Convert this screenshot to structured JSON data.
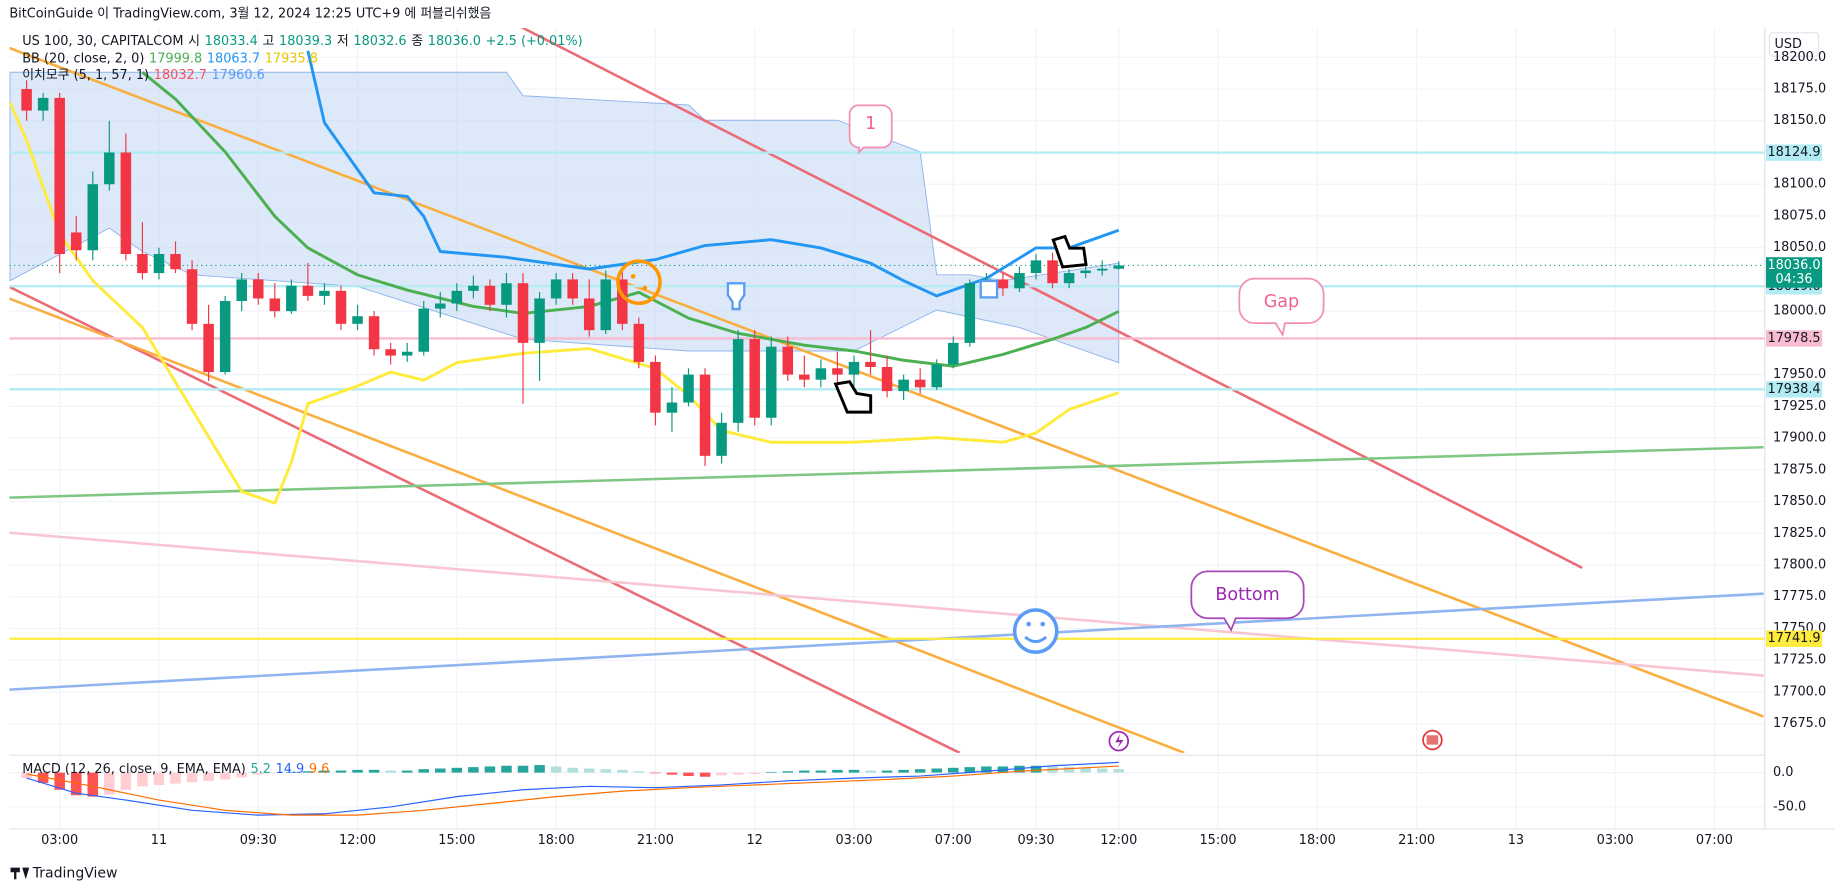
{
  "header": {
    "publish_note": "BitCoinGuide 이 TradingView.com, 3월 12, 2024 12:25 UTC+9 에 퍼블리쉬했음",
    "currency": "USD",
    "footer_logo": "TradingView"
  },
  "chart_data": {
    "type": "candlestick",
    "symbol": "US 100, 30, CAPITALCOM",
    "ohlc_legend": {
      "open_label": "시",
      "open": 18033.4,
      "high_label": "고",
      "high": 18039.3,
      "low_label": "저",
      "low": 18032.6,
      "close_label": "종",
      "close": {
        "value": 18036,
        "label": "18036.0"
      },
      "change": "+2.5 (+0.01%)"
    },
    "categories": [
      null,
      null,
      "03:00",
      null,
      null,
      null,
      null,
      null,
      "11",
      null,
      null,
      null,
      null,
      null,
      "09:30",
      null,
      null,
      null,
      null,
      null,
      "12:00",
      null,
      null,
      null,
      null,
      null,
      "15:00",
      null,
      null,
      null,
      null,
      null,
      "18:00",
      null,
      null,
      null,
      null,
      null,
      "21:00",
      null,
      null,
      null,
      null,
      null,
      "12",
      null,
      null,
      null,
      null,
      null,
      "03:00",
      null,
      null,
      null,
      null,
      null,
      "07:00",
      null,
      null,
      null,
      null,
      "09:30",
      null,
      null,
      null,
      null,
      "12:00"
    ],
    "open": [
      18175,
      18158,
      18168,
      18062,
      18048,
      18100,
      18125,
      18045,
      18030,
      18045,
      18033,
      17990,
      17952,
      18008,
      18025,
      18010,
      18000,
      18020,
      18012,
      18016,
      17990,
      17996,
      17970,
      17965,
      17968,
      18002,
      18006,
      18016,
      18020,
      18005,
      18022,
      17975,
      18010,
      18025,
      18010,
      17985,
      18025,
      17990,
      17960,
      17920,
      17928,
      17950,
      17886,
      17912,
      17978,
      17916,
      17972,
      17950,
      17946,
      17955,
      17950,
      17960,
      17956,
      17937,
      17946,
      17940,
      17958,
      17975,
      18022,
      18025,
      18018,
      18030,
      18040,
      18022,
      18030,
      18032,
      18033.4
    ],
    "high": [
      18182,
      18172,
      18172,
      18075,
      18110,
      18150,
      18140,
      18070,
      18050,
      18055,
      18040,
      18005,
      18012,
      18030,
      18030,
      18022,
      18025,
      18038,
      18022,
      18020,
      18005,
      18000,
      17975,
      17975,
      18008,
      18015,
      18022,
      18028,
      18025,
      18030,
      18030,
      18015,
      18030,
      18030,
      18025,
      18032,
      18035,
      17995,
      17965,
      17940,
      17955,
      17955,
      17920,
      17985,
      17985,
      17980,
      17980,
      17965,
      17962,
      17968,
      17965,
      17985,
      17965,
      17950,
      17955,
      17962,
      17980,
      18025,
      18030,
      18030,
      18035,
      18045,
      18046,
      18033,
      18036,
      18040,
      18039.3
    ],
    "low": [
      18150,
      18150,
      18030,
      18040,
      18040,
      18095,
      18040,
      18025,
      18025,
      18030,
      17985,
      17945,
      17950,
      18000,
      18005,
      17995,
      17998,
      18008,
      18005,
      17985,
      17985,
      17965,
      17958,
      17960,
      17965,
      17995,
      18000,
      18010,
      18000,
      17995,
      17927,
      17945,
      18005,
      18005,
      17980,
      17982,
      17985,
      17955,
      17910,
      17905,
      17925,
      17878,
      17880,
      17905,
      17910,
      17910,
      17945,
      17940,
      17940,
      17940,
      17932,
      17950,
      17932,
      17930,
      17935,
      17938,
      17955,
      17972,
      18015,
      18012,
      18015,
      18025,
      18018,
      18018,
      18026,
      18028,
      18032.6
    ],
    "close": [
      18158,
      18168,
      18045,
      18048,
      18100,
      18125,
      18045,
      18030,
      18045,
      18033,
      17990,
      17952,
      18008,
      18025,
      18010,
      18000,
      18020,
      18012,
      18016,
      17990,
      17996,
      17970,
      17965,
      17968,
      18002,
      18006,
      18016,
      18020,
      18005,
      18022,
      17975,
      18010,
      18025,
      18010,
      17985,
      18025,
      17990,
      17960,
      17920,
      17928,
      17950,
      17886,
      17912,
      17978,
      17916,
      17972,
      17950,
      17946,
      17955,
      17950,
      17960,
      17956,
      17937,
      17946,
      17940,
      17958,
      17975,
      18022,
      18025,
      18018,
      18030,
      18040,
      18022,
      18030,
      18032,
      18033.4,
      18036
    ],
    "up_color": "#089981",
    "down_color": "#f23645",
    "ylim": [
      17652,
      18223
    ],
    "yticks": [
      {
        "value": 17675,
        "label": "17675.0"
      },
      {
        "value": 17700,
        "label": "17700.0"
      },
      {
        "value": 17725,
        "label": "17725.0"
      },
      {
        "value": 17750,
        "label": "17750.0"
      },
      {
        "value": 17775,
        "label": "17775.0"
      },
      {
        "value": 17800,
        "label": "17800.0"
      },
      {
        "value": 17825,
        "label": "17825.0"
      },
      {
        "value": 17850,
        "label": "17850.0"
      },
      {
        "value": 17875,
        "label": "17875.0"
      },
      {
        "value": 17900,
        "label": "17900.0"
      },
      {
        "value": 17925,
        "label": "17925.0"
      },
      {
        "value": 17950,
        "label": "17950.0"
      },
      {
        "value": 18000,
        "label": "18000.0"
      },
      {
        "value": 18050,
        "label": "18050.0"
      },
      {
        "value": 18075,
        "label": "18075.0"
      },
      {
        "value": 18100,
        "label": "18100.0"
      },
      {
        "value": 18150,
        "label": "18150.0"
      },
      {
        "value": 18175,
        "label": "18175.0"
      },
      {
        "value": 18200,
        "label": "18200.0"
      }
    ],
    "grid": true,
    "future_time_labels": [
      "15:00",
      "18:00",
      "21:00",
      "13",
      "03:00",
      "07:00"
    ],
    "last_price": {
      "value": 18036,
      "label": "18036.0"
    },
    "countdown": "04:36",
    "price_lines": [
      {
        "value": 18124.9,
        "color": "#b2ebf2"
      },
      {
        "value": 18019.6,
        "color": "#b2ebf2"
      },
      {
        "value": 17978.5,
        "color": "#f8bbd0"
      },
      {
        "value": 17938.4,
        "color": "#b2ebf2"
      },
      {
        "value": 17741.9,
        "color": "#ffeb3b"
      }
    ],
    "bollinger": {
      "label": "BB (20, close, 2, 0)",
      "legend_values": [
        17999.8,
        18063.7,
        17935.8
      ],
      "lines": [
        {
          "color": "#4caf50",
          "x": [
            7,
            9,
            12,
            15,
            17,
            20,
            23,
            27,
            30,
            34,
            37,
            40,
            43,
            47,
            50,
            53,
            56,
            59,
            62,
            64,
            66
          ],
          "values": [
            18188.2,
            18167,
            18125.5,
            18074.7,
            18049.8,
            18028.6,
            18016.6,
            18003.7,
            17998.2,
            18003.7,
            18014.8,
            17994.5,
            17982.5,
            17973.2,
            17968.6,
            17961.3,
            17956.6,
            17965.9,
            17977.9,
            17987.1,
            17999.8
          ]
        },
        {
          "color": "#2196f3",
          "x": [
            17,
            18,
            20,
            21,
            23,
            24,
            25,
            29,
            34,
            38,
            41,
            45,
            48,
            51,
            53,
            55,
            58,
            61,
            63,
            66
          ],
          "values": [
            18205,
            18148.5,
            18111.6,
            18093.2,
            18090.4,
            18074.7,
            18047,
            18042.4,
            18033.2,
            18040.6,
            18051.7,
            18056.3,
            18049.8,
            18037.8,
            18024,
            18012,
            18025.8,
            18049.8,
            18049.8,
            18063.7
          ]
        },
        {
          "color": "#ffeb3b",
          "x": [
            -1,
            0,
            2,
            4,
            7,
            10,
            13,
            15,
            16,
            17,
            20,
            22,
            24,
            26,
            30,
            34,
            38,
            40,
            42,
            45,
            50,
            55,
            59,
            61,
            63,
            66
          ],
          "values": [
            18164.2,
            18134.7,
            18060.9,
            18024,
            17987.1,
            17922.5,
            17857.9,
            17848.7,
            17881,
            17927.1,
            17941,
            17952,
            17945.6,
            17959.4,
            17966.8,
            17970.5,
            17954.8,
            17933.6,
            17905.9,
            17896.7,
            17896.7,
            17900.4,
            17896.7,
            17904,
            17922.5,
            17935.8
          ]
        }
      ]
    },
    "ichimoku": {
      "label": "이치모쿠 (5, 1, 57, 1)",
      "legend_values": [
        18032.7,
        17960.6
      ],
      "legend_colors": [
        "#f7525f",
        "#5b9cf6"
      ],
      "cloud_color": "#bbd3f3",
      "upper": {
        "x": [
          -1,
          29,
          30,
          40,
          41,
          49,
          54,
          55,
          57,
          59,
          66
        ],
        "values": [
          18188.2,
          18188.2,
          18169.7,
          18162.4,
          18150.4,
          18150.4,
          18125.5,
          18028.6,
          18028.6,
          18024,
          18037.8
        ]
      },
      "lower": {
        "x": [
          -1,
          5,
          7,
          10,
          20,
          30,
          40,
          50,
          55,
          60,
          66
        ],
        "values": [
          18024,
          18065.5,
          18047,
          18028.6,
          18019.4,
          17977.9,
          17968.6,
          17968.6,
          18000.9,
          17987.1,
          17959.4
        ]
      }
    },
    "macd": {
      "label": "MACD (12, 26, close, 9, EMA, EMA)",
      "legend_values": [
        5.2,
        14.9,
        9.6
      ],
      "legend_colors": [
        "#26a69a",
        "#2962ff",
        "#ff6d00"
      ],
      "ylim": [
        -77,
        22
      ],
      "yticks": [
        {
          "value": 0,
          "label": "0.0"
        },
        {
          "value": -50,
          "label": "-50.0"
        }
      ],
      "histogram": [
        -8,
        -15,
        -25,
        -33,
        -35,
        -32,
        -25,
        -20,
        -18,
        -16,
        -14,
        -12,
        -10,
        -7,
        -3,
        -1,
        1,
        2,
        3,
        3,
        4,
        4,
        3,
        3,
        5,
        6,
        7,
        8,
        9,
        10,
        10,
        11,
        9,
        7,
        6,
        5,
        4,
        2,
        -1,
        -3,
        -5,
        -6,
        -4,
        -3,
        -2,
        1,
        2,
        3,
        3,
        4,
        4,
        3,
        3,
        4,
        5,
        6,
        7,
        8,
        9,
        9,
        10,
        10,
        9,
        8,
        7,
        6,
        5.2
      ],
      "lines": [
        {
          "color": "#2962ff",
          "x": [
            0,
            3,
            6,
            10,
            14,
            18,
            22,
            26,
            30,
            34,
            38,
            42,
            46,
            50,
            54,
            58,
            62,
            66
          ],
          "values": [
            -8,
            -30,
            -40,
            -55,
            -62,
            -60,
            -50,
            -35,
            -25,
            -20,
            -22,
            -18,
            -12,
            -8,
            -5,
            2,
            10,
            14.9
          ]
        },
        {
          "color": "#ff6d00",
          "x": [
            0,
            4,
            8,
            12,
            16,
            20,
            24,
            28,
            32,
            36,
            40,
            44,
            48,
            52,
            56,
            60,
            66
          ],
          "values": [
            -2,
            -20,
            -40,
            -55,
            -62,
            -62,
            -55,
            -45,
            -35,
            -27,
            -22,
            -18,
            -14,
            -10,
            -5,
            2,
            9.6
          ]
        }
      ]
    },
    "annotations": [
      "1",
      "Gap",
      "Bottom"
    ]
  }
}
